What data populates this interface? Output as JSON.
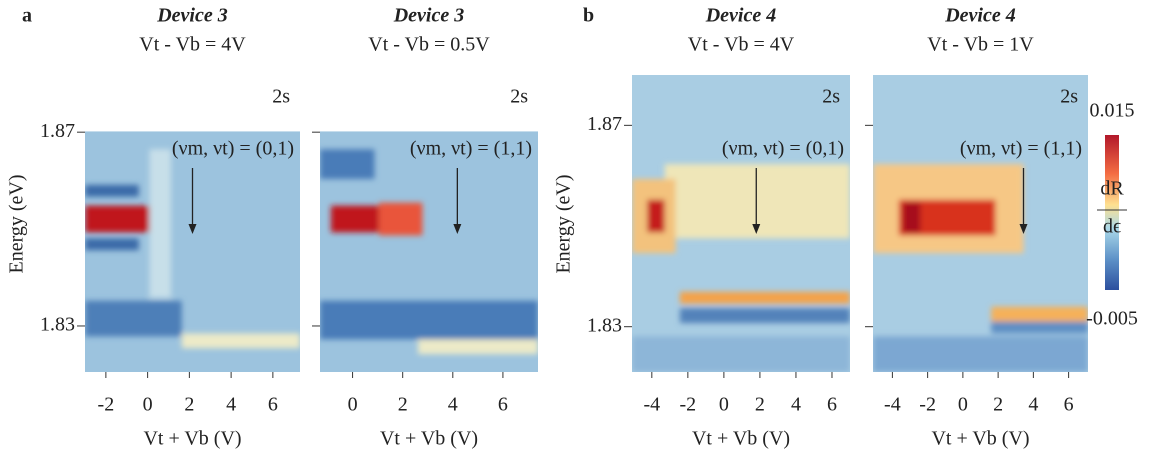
{
  "panel_labels": [
    "a",
    "b"
  ],
  "colorbar": {
    "label_top": "dR",
    "label_bottom": "dϵ",
    "lim": [
      -0.005,
      0.015
    ],
    "ticks": [
      0.015,
      -0.005
    ]
  },
  "chart_data": [
    {
      "type": "heatmap",
      "title": "Device 3",
      "subtitle": "Vt - Vb = 4V",
      "tag": "2s",
      "annotation": "(νm, νt) = (0,1)",
      "xlabel": "Vt + Vb (V)",
      "ylabel": "Energy (eV)",
      "xlim": [
        -3,
        7.3
      ],
      "xticks": [
        -2,
        0,
        2,
        4,
        6
      ],
      "ylim": [
        1.8205,
        1.8818
      ],
      "yticks": [
        1.83,
        1.87
      ]
    },
    {
      "type": "heatmap",
      "title": "Device 3",
      "subtitle": "Vt - Vb = 0.5V",
      "tag": "2s",
      "annotation": "(νm, νt) = (1,1)",
      "xlabel": "Vt + Vb (V)",
      "xlim": [
        -1.3,
        7.4
      ],
      "xticks": [
        0,
        2,
        4,
        6
      ],
      "ylim": [
        1.8205,
        1.8818
      ],
      "yticks": [
        1.83,
        1.87
      ]
    },
    {
      "type": "heatmap",
      "title": "Device 4",
      "subtitle": "Vt - Vb = 4V",
      "tag": "2s",
      "annotation": "(νm, νt) = (0,1)",
      "xlabel": "Vt + Vb (V)",
      "ylabel": "Energy (eV)",
      "xlim": [
        -5.1,
        7.0
      ],
      "xticks": [
        -4,
        -2,
        0,
        2,
        4,
        6
      ],
      "ylim": [
        1.821,
        1.88
      ],
      "yticks": [
        1.83,
        1.87
      ]
    },
    {
      "type": "heatmap",
      "title": "Device 4",
      "subtitle": "Vt - Vb = 1V",
      "tag": "2s",
      "annotation": "(νm, νt) = (1,1)",
      "xlabel": "Vt + Vb (V)",
      "xlim": [
        -5.1,
        7.1
      ],
      "xticks": [
        -4,
        -2,
        0,
        2,
        4,
        6
      ],
      "ylim": [
        1.821,
        1.88
      ],
      "yticks": [
        1.83,
        1.87
      ]
    }
  ]
}
